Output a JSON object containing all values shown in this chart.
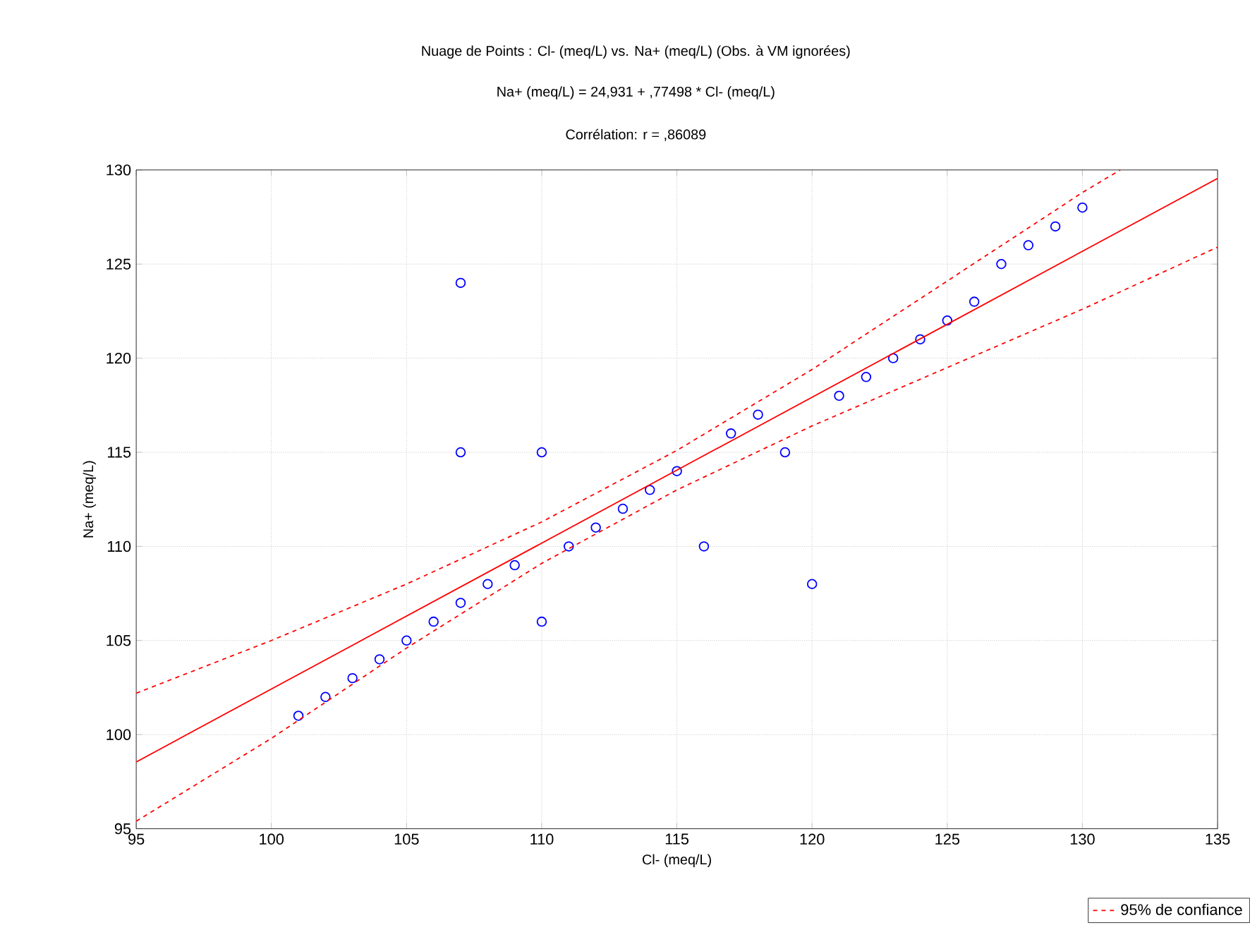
{
  "chart_data": {
    "type": "scatter",
    "title": "Nuage de Points : Cl-  (meq/L) vs. Na+  (meq/L) (Obs. à VM ignorées)",
    "subtitle": "Na+  (meq/L) = 24,931 + ,77498 * Cl-  (meq/L)",
    "annotations": [
      "Corrélation: r = ,86089"
    ],
    "xlabel": "Cl-  (meq/L)",
    "ylabel": "Na+  (meq/L)",
    "xlim": [
      95,
      135
    ],
    "ylim": [
      95,
      130
    ],
    "xticks": [
      95,
      100,
      105,
      110,
      115,
      120,
      125,
      130,
      135
    ],
    "yticks": [
      95,
      100,
      105,
      110,
      115,
      120,
      125,
      130
    ],
    "grid": true,
    "legend": "bottom right",
    "series": [
      {
        "color": "#0000ff",
        "marker": "circle",
        "x": [
          101,
          102,
          103,
          104,
          105,
          106,
          107,
          107,
          107,
          108,
          109,
          110,
          110,
          111,
          112,
          113,
          114,
          115,
          116,
          117,
          118,
          119,
          120,
          121,
          122,
          123,
          124,
          125,
          126,
          127,
          128,
          129,
          130
        ],
        "values": [
          101,
          102,
          103,
          104,
          105,
          106,
          107,
          124,
          115,
          108,
          109,
          106,
          115,
          110,
          111,
          112,
          113,
          114,
          110,
          116,
          117,
          115,
          108,
          118,
          119,
          120,
          121,
          122,
          123,
          125,
          126,
          127,
          128
        ]
      },
      {
        "type": "line",
        "color": "#ff0000",
        "line_style": "solid",
        "x": [
          95,
          135
        ],
        "values": [
          98.55,
          129.55
        ]
      },
      {
        "type": "line",
        "name": "95% de confiance",
        "color": "#ff0000",
        "line_style": "dashed",
        "x": [
          95,
          100,
          105,
          110,
          115,
          120,
          125,
          130,
          131.4
        ],
        "values": [
          102.2,
          105.0,
          108.0,
          111.3,
          115.1,
          119.4,
          124.1,
          128.8,
          130
        ]
      },
      {
        "type": "line",
        "color": "#ff0000",
        "line_style": "dashed",
        "x": [
          95,
          100,
          105,
          110,
          115,
          120,
          125,
          130,
          135
        ],
        "values": [
          95.4,
          99.8,
          104.6,
          109.1,
          113.0,
          116.4,
          119.5,
          122.6,
          125.9
        ]
      }
    ]
  }
}
